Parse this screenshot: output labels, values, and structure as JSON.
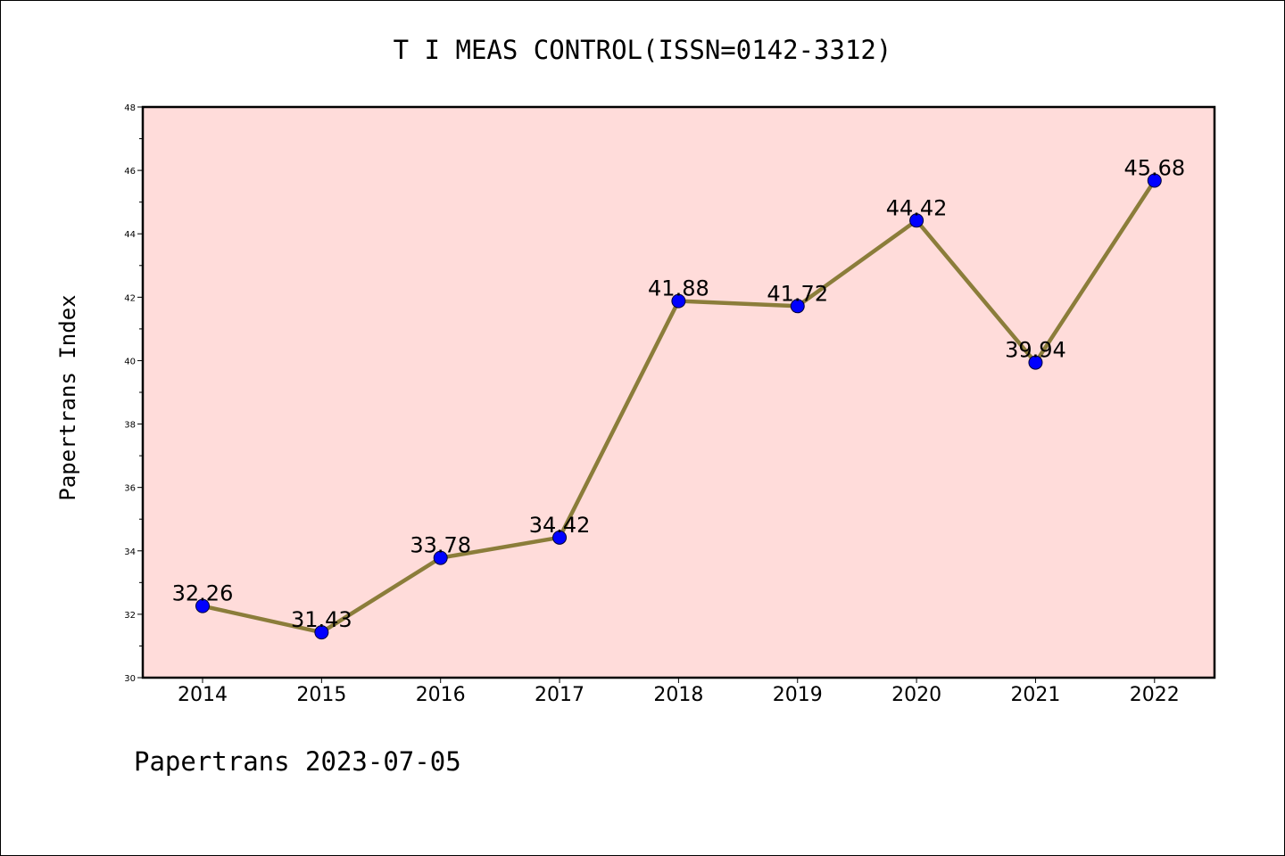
{
  "chart_data": {
    "type": "line",
    "title": "T I MEAS CONTROL(ISSN=0142-3312)",
    "ylabel": "Papertrans Index",
    "xlabel": "",
    "categories": [
      "2014",
      "2015",
      "2016",
      "2017",
      "2018",
      "2019",
      "2020",
      "2021",
      "2022"
    ],
    "series": [
      {
        "values": [
          32.26,
          31.43,
          33.78,
          34.42,
          41.88,
          41.72,
          44.42,
          39.94,
          45.68
        ],
        "labels": [
          "32.26",
          "31.43",
          "33.78",
          "34.42",
          "41.88",
          "41.72",
          "44.42",
          "39.94",
          "45.68"
        ]
      }
    ],
    "ylim": [
      30,
      48
    ],
    "yticks": [
      "30",
      "32",
      "34",
      "36",
      "38",
      "40",
      "42",
      "44",
      "46",
      "48"
    ],
    "grid": false,
    "legend": "none",
    "footer": "Papertrans 2023-07-05",
    "colors": {
      "plot_background": "#FFDCDA",
      "line": "#8B7D3A",
      "marker": "#0000FF"
    }
  }
}
